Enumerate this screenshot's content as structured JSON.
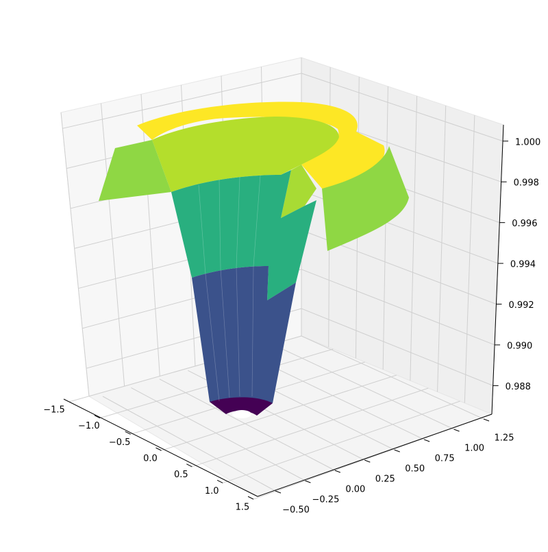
{
  "chart_data": {
    "type": "surface3d",
    "colormap": "viridis",
    "x_axis": {
      "ticks": [
        -1.5,
        -1.0,
        -0.5,
        0.0,
        0.5,
        1.0,
        1.5
      ],
      "tick_labels": [
        "−1.5",
        "−1.0",
        "−0.5",
        "0.0",
        "0.5",
        "1.0",
        "1.5"
      ]
    },
    "y_axis": {
      "ticks": [
        -0.5,
        -0.25,
        0.0,
        0.25,
        0.5,
        0.75,
        1.0,
        1.25
      ],
      "tick_labels": [
        "−0.50",
        "−0.25",
        "0.00",
        "0.25",
        "0.50",
        "0.75",
        "1.00",
        "1.25"
      ]
    },
    "z_axis": {
      "ticks": [
        0.988,
        0.99,
        0.992,
        0.994,
        0.996,
        0.998,
        1.0
      ],
      "tick_labels": [
        "0.988",
        "0.990",
        "0.992",
        "0.994",
        "0.996",
        "0.998",
        "1.000"
      ],
      "range": [
        0.9866,
        1.0008
      ]
    },
    "surface_levels": [
      {
        "z_range": [
          0.9866,
          0.988
        ],
        "color": "#440154"
      },
      {
        "z_range": [
          0.988,
          0.992
        ],
        "color": "#3b528b"
      },
      {
        "z_range": [
          0.992,
          0.996
        ],
        "color": "#27b07f"
      },
      {
        "z_range": [
          0.996,
          0.999
        ],
        "color": "#b4de2c"
      },
      {
        "z_range": [
          0.999,
          1.0008
        ],
        "color": "#fde725"
      }
    ],
    "grid": true,
    "pane_color": "#f2f2f2"
  }
}
